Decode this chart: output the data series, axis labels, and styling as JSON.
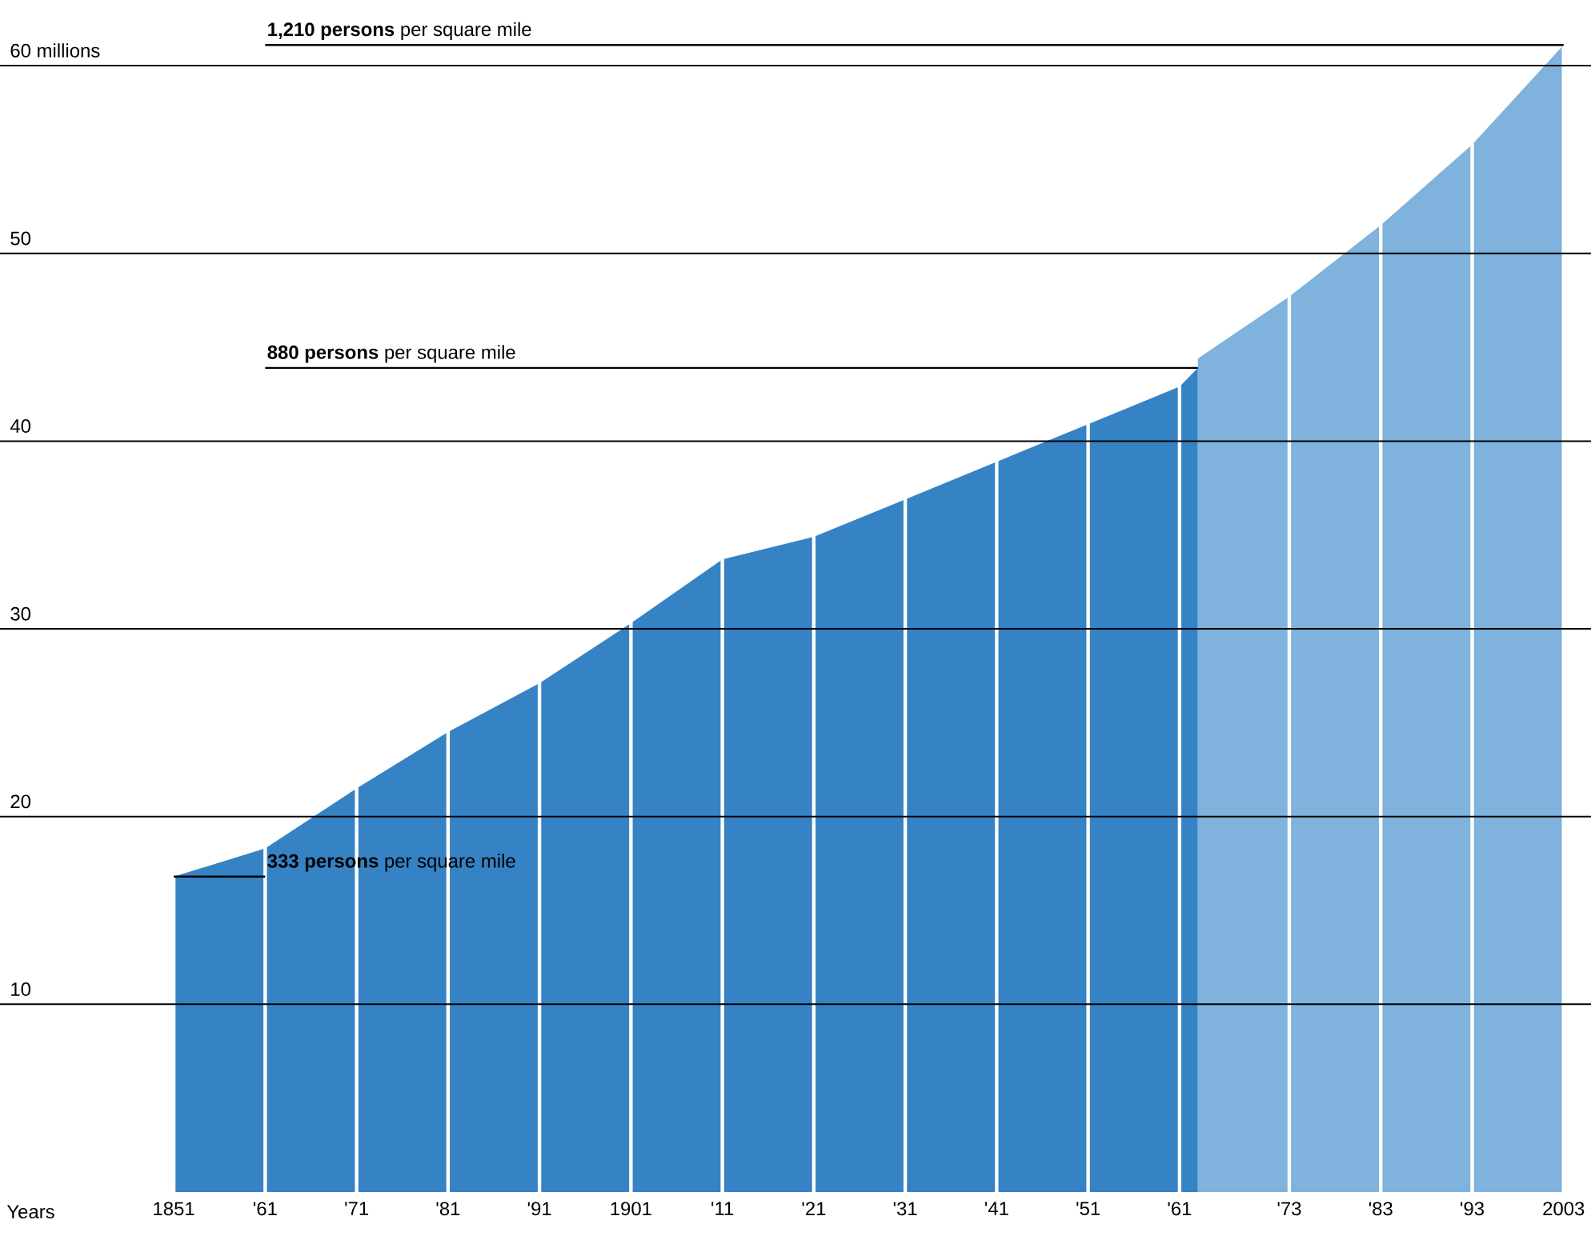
{
  "chart_data": {
    "type": "area",
    "xlabel": "Years",
    "xlim": [
      1832,
      2006
    ],
    "xticks": [
      {
        "value": 1851,
        "label": "1851"
      },
      {
        "value": 1861,
        "label": "'61"
      },
      {
        "value": 1871,
        "label": "'71"
      },
      {
        "value": 1881,
        "label": "'81"
      },
      {
        "value": 1891,
        "label": "'91"
      },
      {
        "value": 1901,
        "label": "1901"
      },
      {
        "value": 1911,
        "label": "'11"
      },
      {
        "value": 1921,
        "label": "'21"
      },
      {
        "value": 1931,
        "label": "'31"
      },
      {
        "value": 1941,
        "label": "'41"
      },
      {
        "value": 1951,
        "label": "'51"
      },
      {
        "value": 1961,
        "label": "'61"
      },
      {
        "value": 1973,
        "label": "'73"
      },
      {
        "value": 1983,
        "label": "'83"
      },
      {
        "value": 1993,
        "label": "'93"
      },
      {
        "value": 2003,
        "label": "2003"
      }
    ],
    "ylim": [
      0,
      63.5
    ],
    "yticks": [
      10,
      20,
      30,
      40,
      50,
      {
        "value": 60,
        "label": "60 millions"
      }
    ],
    "grid": true,
    "series": [
      {
        "color": "#3582c4",
        "x": [
          1851,
          1861,
          1871,
          1881,
          1891,
          1901,
          1911,
          1921,
          1931,
          1941,
          1951,
          1961,
          1963
        ],
        "values": [
          16.8,
          18.3,
          21.5,
          24.5,
          27.1,
          30.3,
          33.7,
          34.9,
          36.9,
          38.9,
          40.9,
          42.9,
          43.9
        ]
      },
      {
        "color": "#7fb2dc",
        "x": [
          1963,
          1973,
          1983,
          1993,
          2003
        ],
        "values": [
          44.4,
          47.7,
          51.5,
          55.8,
          61.1
        ]
      }
    ],
    "annotations": [
      {
        "text": "**333 persons** per square mile",
        "x": 1851,
        "y": 16.8
      },
      {
        "text": "**880 persons** per square mile",
        "x": 1963,
        "y": 43.9
      },
      {
        "text": "**1,210 persons** per square mile",
        "x": 2003,
        "y": 61.1
      }
    ]
  }
}
